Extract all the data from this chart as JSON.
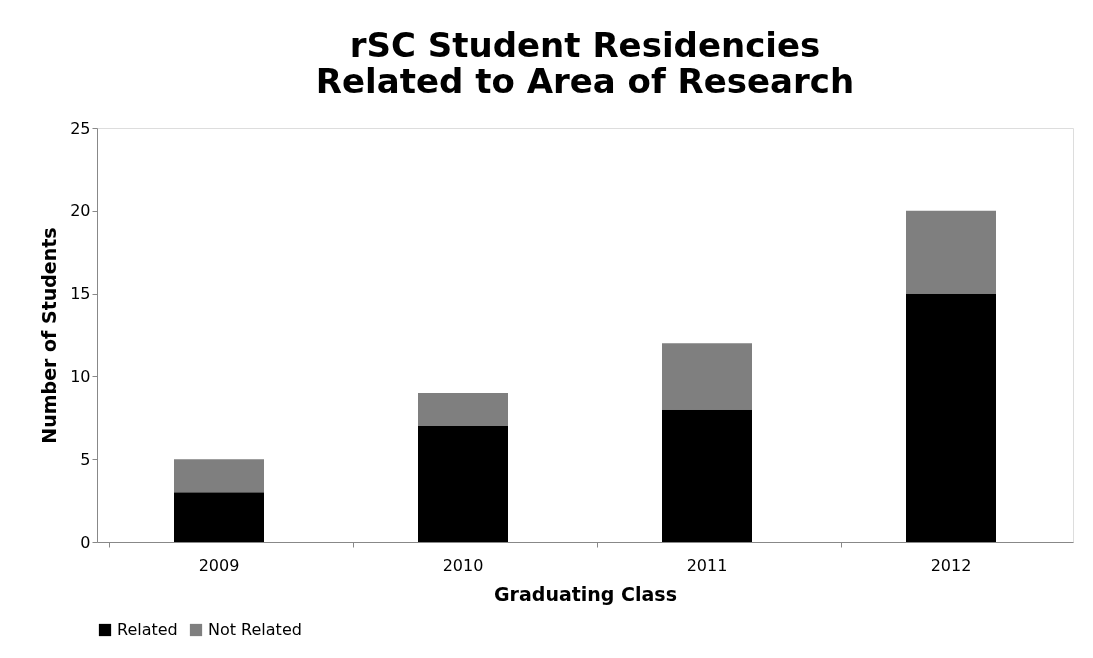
{
  "chart_data": {
    "type": "bar",
    "title": "rSC Student Residencies Related to Area of Research",
    "xlabel": "Graduating Class",
    "ylabel": "Number of Students",
    "categories": [
      "2009",
      "2010",
      "2011",
      "2012"
    ],
    "series": [
      {
        "name": "Related",
        "color": "#000000",
        "values": [
          3,
          7,
          8,
          15
        ]
      },
      {
        "name": "Not Related",
        "color": "#7f7f7f",
        "values": [
          2,
          2,
          4,
          5
        ]
      }
    ],
    "stacked": true,
    "ylim": [
      0,
      25
    ],
    "yticks": [
      0,
      5,
      10,
      15,
      20,
      25
    ],
    "grid": false,
    "legend": "bottom"
  }
}
